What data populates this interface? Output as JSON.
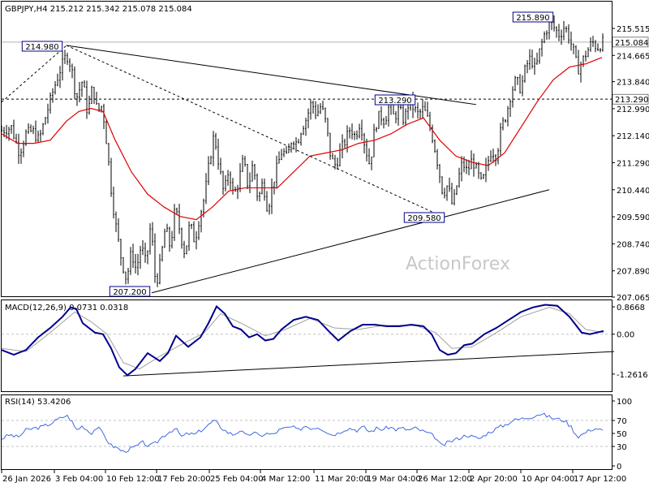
{
  "chart_data": {
    "type": "candlestick",
    "header": {
      "symbol": "GBPJPY,H4",
      "ohlc": "215.212 215.342 215.078 215.084"
    },
    "watermark": "ActionForex",
    "x_ticks": [
      "26 Jan 2026",
      "3 Feb 04:00",
      "10 Feb 12:00",
      "17 Feb 20:00",
      "25 Feb 04:00",
      "4 Mar 12:00",
      "11 Mar 20:00",
      "19 Mar 04:00",
      "26 Mar 12:00",
      "2 Apr 20:00",
      "10 Apr 04:00",
      "17 Apr 12:00"
    ],
    "price_panel": {
      "ylim": [
        207.065,
        215.9
      ],
      "y_ticks": [
        "215.515",
        "214.665",
        "213.840",
        "212.990",
        "212.140",
        "211.290",
        "210.440",
        "209.590",
        "208.740",
        "207.890",
        "207.065"
      ],
      "current_price": "215.084",
      "level_line": "213.290",
      "annotations": {
        "p1": "214.980",
        "p2": "207.200",
        "p3": "213.290",
        "p4": "209.580",
        "p5": "215.890"
      },
      "close_path": [
        [
          0,
          212.3
        ],
        [
          12,
          212.4
        ],
        [
          22,
          211.6
        ],
        [
          30,
          212.2
        ],
        [
          38,
          212.3
        ],
        [
          46,
          212.0
        ],
        [
          56,
          212.9
        ],
        [
          64,
          213.6
        ],
        [
          72,
          214.2
        ],
        [
          80,
          214.7
        ],
        [
          86,
          214.3
        ],
        [
          92,
          213.3
        ],
        [
          100,
          213.9
        ],
        [
          106,
          212.8
        ],
        [
          112,
          213.7
        ],
        [
          118,
          212.9
        ],
        [
          124,
          213.1
        ],
        [
          130,
          211.8
        ],
        [
          136,
          210.2
        ],
        [
          142,
          209.1
        ],
        [
          148,
          208.2
        ],
        [
          154,
          207.6
        ],
        [
          160,
          208.5
        ],
        [
          166,
          207.9
        ],
        [
          172,
          208.7
        ],
        [
          178,
          208.1
        ],
        [
          184,
          209.4
        ],
        [
          190,
          207.4
        ],
        [
          196,
          208.2
        ],
        [
          202,
          209.3
        ],
        [
          208,
          208.6
        ],
        [
          214,
          209.9
        ],
        [
          220,
          209.1
        ],
        [
          226,
          208.4
        ],
        [
          232,
          209.4
        ],
        [
          238,
          208.8
        ],
        [
          244,
          209.6
        ],
        [
          250,
          210.2
        ],
        [
          256,
          211.3
        ],
        [
          262,
          212.2
        ],
        [
          268,
          211.2
        ],
        [
          274,
          210.3
        ],
        [
          280,
          211.1
        ],
        [
          286,
          210.2
        ],
        [
          292,
          210.7
        ],
        [
          298,
          211.4
        ],
        [
          304,
          210.5
        ],
        [
          310,
          211.3
        ],
        [
          316,
          210.1
        ],
        [
          322,
          210.7
        ],
        [
          328,
          209.8
        ],
        [
          334,
          210.6
        ],
        [
          340,
          211.2
        ],
        [
          346,
          211.7
        ],
        [
          352,
          211.4
        ],
        [
          358,
          212.1
        ],
        [
          364,
          211.9
        ],
        [
          370,
          212.4
        ],
        [
          376,
          212.7
        ],
        [
          382,
          213.2
        ],
        [
          388,
          212.8
        ],
        [
          394,
          213.1
        ],
        [
          400,
          212.5
        ],
        [
          406,
          211.4
        ],
        [
          412,
          211.2
        ],
        [
          418,
          211.7
        ],
        [
          424,
          212.0
        ],
        [
          430,
          212.4
        ],
        [
          436,
          212.1
        ],
        [
          442,
          212.6
        ],
        [
          448,
          211.8
        ],
        [
          454,
          211.2
        ],
        [
          460,
          212.4
        ],
        [
          466,
          212.8
        ],
        [
          472,
          212.6
        ],
        [
          478,
          213.1
        ],
        [
          484,
          212.7
        ],
        [
          490,
          213.0
        ],
        [
          496,
          212.6
        ],
        [
          502,
          213.2
        ],
        [
          508,
          213.0
        ],
        [
          514,
          212.8
        ],
        [
          520,
          213.0
        ],
        [
          526,
          212.6
        ],
        [
          532,
          212.0
        ],
        [
          538,
          211.2
        ],
        [
          544,
          210.3
        ],
        [
          550,
          210.6
        ],
        [
          556,
          209.9
        ],
        [
          562,
          210.7
        ],
        [
          568,
          211.3
        ],
        [
          574,
          211.0
        ],
        [
          580,
          211.4
        ],
        [
          586,
          211.0
        ],
        [
          592,
          210.6
        ],
        [
          598,
          211.2
        ],
        [
          604,
          211.7
        ],
        [
          610,
          211.5
        ],
        [
          616,
          212.4
        ],
        [
          622,
          212.8
        ],
        [
          628,
          213.5
        ],
        [
          634,
          213.9
        ],
        [
          640,
          213.6
        ],
        [
          646,
          214.3
        ],
        [
          652,
          214.6
        ],
        [
          658,
          214.2
        ],
        [
          664,
          214.9
        ],
        [
          670,
          215.4
        ],
        [
          676,
          215.7
        ],
        [
          682,
          215.5
        ],
        [
          688,
          215.3
        ],
        [
          694,
          215.6
        ],
        [
          700,
          215.2
        ],
        [
          706,
          214.7
        ],
        [
          710,
          214.2
        ],
        [
          716,
          214.5
        ],
        [
          722,
          214.8
        ],
        [
          728,
          215.1
        ],
        [
          734,
          214.9
        ],
        [
          742,
          215.1
        ]
      ],
      "ma_path": [
        [
          0,
          212.2
        ],
        [
          20,
          211.9
        ],
        [
          40,
          211.9
        ],
        [
          60,
          212.0
        ],
        [
          80,
          212.6
        ],
        [
          95,
          212.9
        ],
        [
          110,
          213.0
        ],
        [
          125,
          212.9
        ],
        [
          140,
          212.0
        ],
        [
          160,
          211.0
        ],
        [
          180,
          210.3
        ],
        [
          200,
          209.9
        ],
        [
          220,
          209.6
        ],
        [
          240,
          209.5
        ],
        [
          260,
          209.9
        ],
        [
          280,
          210.4
        ],
        [
          300,
          210.5
        ],
        [
          320,
          210.5
        ],
        [
          340,
          210.5
        ],
        [
          360,
          211.0
        ],
        [
          380,
          211.5
        ],
        [
          400,
          211.6
        ],
        [
          420,
          211.7
        ],
        [
          440,
          211.9
        ],
        [
          460,
          212.0
        ],
        [
          480,
          212.2
        ],
        [
          500,
          212.5
        ],
        [
          520,
          212.7
        ],
        [
          540,
          212.0
        ],
        [
          560,
          211.5
        ],
        [
          580,
          211.3
        ],
        [
          600,
          211.2
        ],
        [
          620,
          211.6
        ],
        [
          640,
          212.4
        ],
        [
          660,
          213.2
        ],
        [
          680,
          213.9
        ],
        [
          700,
          214.3
        ],
        [
          720,
          214.4
        ],
        [
          740,
          214.6
        ]
      ],
      "trend_lines": [
        {
          "from": [
            80,
            214.98
          ],
          "to": [
            585,
            213.12
          ],
          "style": "solid"
        },
        {
          "from": [
            185,
            207.2
          ],
          "to": [
            675,
            210.44
          ],
          "style": "solid"
        },
        {
          "from": [
            80,
            214.98
          ],
          "to": [
            545,
            209.58
          ],
          "style": "dashed"
        },
        {
          "from": [
            0,
            213.2
          ],
          "to": [
            80,
            214.98
          ],
          "style": "dashed"
        }
      ]
    },
    "macd_panel": {
      "label": "MACD(12,26,9) 0.0731 0.0318",
      "ylim": [
        -1.4,
        0.95
      ],
      "y_ticks": [
        "0.8668",
        "0.00",
        "-1.2616"
      ],
      "macd": [
        [
          0,
          -0.5
        ],
        [
          15,
          -0.65
        ],
        [
          30,
          -0.5
        ],
        [
          45,
          -0.1
        ],
        [
          60,
          0.2
        ],
        [
          75,
          0.55
        ],
        [
          85,
          0.85
        ],
        [
          92,
          0.8
        ],
        [
          100,
          0.35
        ],
        [
          115,
          0.05
        ],
        [
          125,
          0.0
        ],
        [
          135,
          -0.45
        ],
        [
          145,
          -1.05
        ],
        [
          155,
          -1.3
        ],
        [
          165,
          -1.1
        ],
        [
          180,
          -0.6
        ],
        [
          195,
          -0.85
        ],
        [
          205,
          -0.6
        ],
        [
          215,
          -0.05
        ],
        [
          230,
          -0.4
        ],
        [
          245,
          -0.1
        ],
        [
          255,
          0.35
        ],
        [
          265,
          0.88
        ],
        [
          275,
          0.65
        ],
        [
          285,
          0.25
        ],
        [
          295,
          0.15
        ],
        [
          305,
          -0.1
        ],
        [
          315,
          0.0
        ],
        [
          325,
          -0.2
        ],
        [
          335,
          -0.15
        ],
        [
          345,
          0.15
        ],
        [
          360,
          0.45
        ],
        [
          375,
          0.55
        ],
        [
          390,
          0.45
        ],
        [
          405,
          0.05
        ],
        [
          415,
          -0.2
        ],
        [
          430,
          0.1
        ],
        [
          445,
          0.3
        ],
        [
          460,
          0.3
        ],
        [
          475,
          0.25
        ],
        [
          490,
          0.25
        ],
        [
          505,
          0.3
        ],
        [
          520,
          0.25
        ],
        [
          530,
          0.0
        ],
        [
          540,
          -0.5
        ],
        [
          550,
          -0.65
        ],
        [
          560,
          -0.6
        ],
        [
          570,
          -0.35
        ],
        [
          580,
          -0.3
        ],
        [
          595,
          0.0
        ],
        [
          610,
          0.2
        ],
        [
          625,
          0.45
        ],
        [
          640,
          0.7
        ],
        [
          655,
          0.85
        ],
        [
          670,
          0.93
        ],
        [
          685,
          0.9
        ],
        [
          700,
          0.55
        ],
        [
          715,
          0.05
        ],
        [
          725,
          0.0
        ],
        [
          742,
          0.1
        ]
      ],
      "signal": [
        [
          0,
          -0.45
        ],
        [
          30,
          -0.55
        ],
        [
          60,
          0.05
        ],
        [
          90,
          0.7
        ],
        [
          110,
          0.4
        ],
        [
          130,
          0.0
        ],
        [
          150,
          -0.9
        ],
        [
          170,
          -1.1
        ],
        [
          195,
          -0.7
        ],
        [
          220,
          -0.35
        ],
        [
          250,
          0.05
        ],
        [
          270,
          0.65
        ],
        [
          295,
          0.35
        ],
        [
          325,
          -0.05
        ],
        [
          350,
          0.15
        ],
        [
          380,
          0.5
        ],
        [
          410,
          0.2
        ],
        [
          440,
          0.15
        ],
        [
          470,
          0.28
        ],
        [
          510,
          0.28
        ],
        [
          535,
          0.05
        ],
        [
          555,
          -0.45
        ],
        [
          580,
          -0.4
        ],
        [
          610,
          0.05
        ],
        [
          640,
          0.55
        ],
        [
          675,
          0.85
        ],
        [
          700,
          0.65
        ],
        [
          720,
          0.15
        ],
        [
          742,
          0.05
        ]
      ],
      "trend_line": {
        "from": [
          150,
          -1.32
        ],
        "to": [
          755,
          -0.55
        ]
      }
    },
    "rsi_panel": {
      "label": "RSI(14) 53.4206",
      "ylim": [
        0,
        100
      ],
      "y_ticks": [
        "100",
        "70",
        "50",
        "30",
        "0"
      ],
      "levels": [
        70,
        30
      ],
      "values": [
        [
          0,
          42
        ],
        [
          10,
          48
        ],
        [
          20,
          44
        ],
        [
          30,
          55
        ],
        [
          40,
          58
        ],
        [
          50,
          60
        ],
        [
          60,
          65
        ],
        [
          70,
          72
        ],
        [
          80,
          78
        ],
        [
          86,
          70
        ],
        [
          92,
          55
        ],
        [
          100,
          62
        ],
        [
          110,
          50
        ],
        [
          118,
          60
        ],
        [
          126,
          48
        ],
        [
          134,
          32
        ],
        [
          142,
          28
        ],
        [
          150,
          22
        ],
        [
          158,
          26
        ],
        [
          166,
          30
        ],
        [
          174,
          36
        ],
        [
          182,
          30
        ],
        [
          190,
          35
        ],
        [
          198,
          45
        ],
        [
          206,
          52
        ],
        [
          214,
          58
        ],
        [
          222,
          45
        ],
        [
          230,
          50
        ],
        [
          238,
          48
        ],
        [
          246,
          55
        ],
        [
          254,
          62
        ],
        [
          262,
          70
        ],
        [
          270,
          60
        ],
        [
          278,
          52
        ],
        [
          286,
          48
        ],
        [
          294,
          55
        ],
        [
          302,
          45
        ],
        [
          310,
          52
        ],
        [
          318,
          46
        ],
        [
          326,
          50
        ],
        [
          334,
          48
        ],
        [
          342,
          55
        ],
        [
          350,
          58
        ],
        [
          358,
          60
        ],
        [
          366,
          55
        ],
        [
          374,
          62
        ],
        [
          382,
          58
        ],
        [
          390,
          60
        ],
        [
          398,
          55
        ],
        [
          406,
          48
        ],
        [
          414,
          50
        ],
        [
          422,
          56
        ],
        [
          430,
          58
        ],
        [
          438,
          55
        ],
        [
          446,
          60
        ],
        [
          454,
          52
        ],
        [
          462,
          58
        ],
        [
          470,
          56
        ],
        [
          478,
          60
        ],
        [
          486,
          56
        ],
        [
          494,
          58
        ],
        [
          502,
          55
        ],
        [
          510,
          58
        ],
        [
          518,
          54
        ],
        [
          526,
          50
        ],
        [
          534,
          45
        ],
        [
          542,
          30
        ],
        [
          550,
          36
        ],
        [
          558,
          40
        ],
        [
          566,
          44
        ],
        [
          574,
          48
        ],
        [
          582,
          44
        ],
        [
          590,
          42
        ],
        [
          598,
          50
        ],
        [
          606,
          55
        ],
        [
          614,
          60
        ],
        [
          622,
          64
        ],
        [
          630,
          70
        ],
        [
          638,
          72
        ],
        [
          646,
          74
        ],
        [
          654,
          76
        ],
        [
          662,
          80
        ],
        [
          670,
          78
        ],
        [
          678,
          74
        ],
        [
          686,
          72
        ],
        [
          694,
          70
        ],
        [
          702,
          60
        ],
        [
          710,
          45
        ],
        [
          718,
          50
        ],
        [
          726,
          56
        ],
        [
          734,
          58
        ],
        [
          742,
          53
        ]
      ]
    }
  }
}
